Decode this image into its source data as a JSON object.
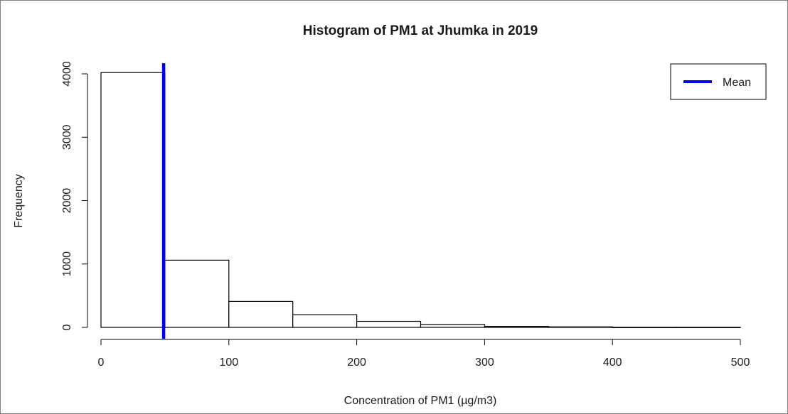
{
  "chart_data": {
    "type": "histogram",
    "title": "Histogram of PM1 at Jhumka in 2019",
    "xlabel": "Concentration of PM1 (µg/m3)",
    "ylabel": "Frequency",
    "xlim": [
      0,
      500
    ],
    "ylim": [
      0,
      4000
    ],
    "x_ticks": [
      0,
      100,
      200,
      300,
      400,
      500
    ],
    "y_ticks": [
      0,
      1000,
      2000,
      3000,
      4000
    ],
    "bins": [
      {
        "from": 0,
        "to": 50,
        "count": 4020
      },
      {
        "from": 50,
        "to": 100,
        "count": 1060
      },
      {
        "from": 100,
        "to": 150,
        "count": 410
      },
      {
        "from": 150,
        "to": 200,
        "count": 200
      },
      {
        "from": 200,
        "to": 250,
        "count": 95
      },
      {
        "from": 250,
        "to": 300,
        "count": 45
      },
      {
        "from": 300,
        "to": 350,
        "count": 15
      },
      {
        "from": 350,
        "to": 400,
        "count": 8
      },
      {
        "from": 400,
        "to": 450,
        "count": 1
      },
      {
        "from": 450,
        "to": 500,
        "count": 1
      }
    ],
    "mean_line": {
      "value": 49,
      "label": "Mean",
      "color": "#0000ee"
    },
    "legend": {
      "position": "top-right",
      "entries": [
        "Mean"
      ]
    },
    "grid": false,
    "colors": {
      "bar_fill": "#ffffff",
      "bar_stroke": "#000000",
      "mean": "#0000ee"
    }
  }
}
